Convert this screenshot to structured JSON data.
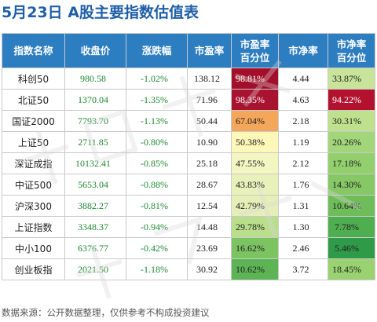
{
  "title": "5月23日  A股主要指数估值表",
  "headers": {
    "name": "指数名称",
    "close": "收盘价",
    "change": "涨跌幅",
    "pe": "市盈率",
    "pe_pct_line1": "市盈率",
    "pe_pct_line2": "百分位",
    "pb": "市净率",
    "pb_pct_line1": "市净率",
    "pb_pct_line2": "百分位"
  },
  "rows": [
    {
      "name": "科创50",
      "close": "980.58",
      "change": "-1.02%",
      "pe": "138.12",
      "pe_pct": "98.81%",
      "pe_pct_color": "#a30f2a",
      "pe_pct_text": "#ffffff",
      "pb": "4.44",
      "pb_pct": "33.87%",
      "pb_pct_color": "#c8e39a",
      "pb_pct_text": "#222222"
    },
    {
      "name": "北证50",
      "close": "1370.04",
      "change": "-1.35%",
      "pe": "71.96",
      "pe_pct": "98.35%",
      "pe_pct_color": "#a81330",
      "pe_pct_text": "#ffffff",
      "pb": "4.63",
      "pb_pct": "94.22%",
      "pb_pct_color": "#b3122f",
      "pb_pct_text": "#ffffff"
    },
    {
      "name": "国证2000",
      "close": "7793.70",
      "change": "-1.13%",
      "pe": "50.44",
      "pe_pct": "67.04%",
      "pe_pct_color": "#f4a65a",
      "pe_pct_text": "#222222",
      "pb": "2.18",
      "pb_pct": "30.31%",
      "pb_pct_color": "#bfe08c",
      "pb_pct_text": "#222222"
    },
    {
      "name": "上证50",
      "close": "2711.85",
      "change": "-0.80%",
      "pe": "10.90",
      "pe_pct": "50.38%",
      "pe_pct_color": "#fdf7b8",
      "pe_pct_text": "#222222",
      "pb": "1.19",
      "pb_pct": "20.26%",
      "pb_pct_color": "#a3d67a",
      "pb_pct_text": "#222222"
    },
    {
      "name": "深证成指",
      "close": "10132.41",
      "change": "-0.85%",
      "pe": "25.18",
      "pe_pct": "47.55%",
      "pe_pct_color": "#f4f6c2",
      "pe_pct_text": "#222222",
      "pb": "2.12",
      "pb_pct": "17.18%",
      "pb_pct_color": "#94cf6e",
      "pb_pct_text": "#222222"
    },
    {
      "name": "中证500",
      "close": "5653.04",
      "change": "-0.88%",
      "pe": "28.67",
      "pe_pct": "43.83%",
      "pe_pct_color": "#e9f1bb",
      "pe_pct_text": "#222222",
      "pb": "1.76",
      "pb_pct": "14.30%",
      "pb_pct_color": "#86c865",
      "pb_pct_text": "#222222"
    },
    {
      "name": "沪深300",
      "close": "3882.27",
      "change": "-0.81%",
      "pe": "12.54",
      "pe_pct": "42.79%",
      "pe_pct_color": "#e6efb8",
      "pe_pct_text": "#222222",
      "pb": "1.31",
      "pb_pct": "10.64%",
      "pb_pct_color": "#6fbd5a",
      "pb_pct_text": "#222222"
    },
    {
      "name": "上证指数",
      "close": "3348.37",
      "change": "-0.94%",
      "pe": "14.48",
      "pe_pct": "29.78%",
      "pe_pct_color": "#b9df8c",
      "pe_pct_text": "#222222",
      "pb": "1.30",
      "pb_pct": "7.78%",
      "pb_pct_color": "#4eae50",
      "pb_pct_text": "#222222"
    },
    {
      "name": "中小100",
      "close": "6376.77",
      "change": "-0.42%",
      "pe": "23.69",
      "pe_pct": "16.62%",
      "pe_pct_color": "#7cc462",
      "pe_pct_text": "#222222",
      "pb": "2.46",
      "pb_pct": "5.46%",
      "pb_pct_color": "#2f9a48",
      "pb_pct_text": "#222222"
    },
    {
      "name": "创业板指",
      "close": "2021.50",
      "change": "-1.18%",
      "pe": "30.92",
      "pe_pct": "10.62%",
      "pe_pct_color": "#5db455",
      "pe_pct_text": "#222222",
      "pb": "3.72",
      "pb_pct": "18.45%",
      "pb_pct_color": "#9ad271",
      "pb_pct_text": "#222222"
    }
  ],
  "footer": "数据来源：公开数据整理，仅供参考不构成投资建议",
  "colors": {
    "header_bg": "#2d7dc1",
    "title": "#1f5fa8",
    "close_green": "#1e8a2f"
  }
}
